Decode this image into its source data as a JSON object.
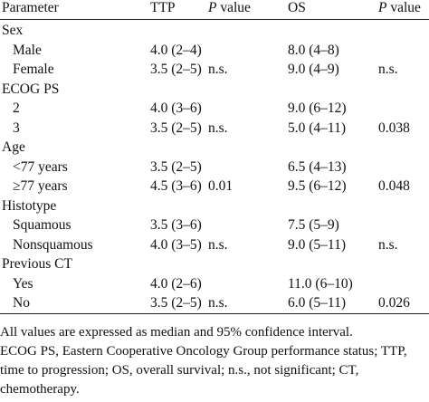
{
  "header": {
    "parameter": "Parameter",
    "ttp": "TTP",
    "p_value_ttp_italic": "P",
    "p_value_ttp_rest": " value",
    "os": "OS",
    "p_value_os_italic": "P",
    "p_value_os_rest": " value"
  },
  "rows": [
    {
      "label": "Sex",
      "group": true,
      "ttp": "",
      "p_ttp": "",
      "os": "",
      "p_os": ""
    },
    {
      "label": "Male",
      "group": false,
      "ttp": "4.0 (2–4)",
      "p_ttp": "",
      "os": "8.0 (4–8)",
      "p_os": ""
    },
    {
      "label": "Female",
      "group": false,
      "ttp": "3.5 (2–5)",
      "p_ttp": "n.s.",
      "os": "9.0 (4–9)",
      "p_os": "n.s."
    },
    {
      "label": "ECOG PS",
      "group": true,
      "ttp": "",
      "p_ttp": "",
      "os": "",
      "p_os": ""
    },
    {
      "label": "2",
      "group": false,
      "ttp": "4.0 (3–6)",
      "p_ttp": "",
      "os": "9.0 (6–12)",
      "p_os": ""
    },
    {
      "label": "3",
      "group": false,
      "ttp": "3.5 (2–5)",
      "p_ttp": "n.s.",
      "os": "5.0 (4–11)",
      "p_os": "0.038"
    },
    {
      "label": "Age",
      "group": true,
      "ttp": "",
      "p_ttp": "",
      "os": "",
      "p_os": ""
    },
    {
      "label": "<77 years",
      "group": false,
      "ttp": "3.5 (2–5)",
      "p_ttp": "",
      "os": "6.5 (4–13)",
      "p_os": ""
    },
    {
      "label": "≥77 years",
      "group": false,
      "ttp": "4.5 (3–6)",
      "p_ttp": "0.01",
      "os": "9.5 (6–12)",
      "p_os": "0.048"
    },
    {
      "label": "Histotype",
      "group": true,
      "ttp": "",
      "p_ttp": "",
      "os": "",
      "p_os": ""
    },
    {
      "label": "Squamous",
      "group": false,
      "ttp": "3.5 (3–6)",
      "p_ttp": "",
      "os": "7.5 (5–9)",
      "p_os": ""
    },
    {
      "label": "Nonsquamous",
      "group": false,
      "ttp": "4.0 (3–5)",
      "p_ttp": "n.s.",
      "os": "9.0 (5–11)",
      "p_os": "n.s."
    },
    {
      "label": "Previous CT",
      "group": true,
      "ttp": "",
      "p_ttp": "",
      "os": "",
      "p_os": ""
    },
    {
      "label": "Yes",
      "group": false,
      "ttp": "4.0 (2–6)",
      "p_ttp": "",
      "os": "11.0 (6–10)",
      "p_os": ""
    },
    {
      "label": "No",
      "group": false,
      "ttp": "3.5 (2–5)",
      "p_ttp": "n.s.",
      "os": "6.0 (5–11)",
      "p_os": "0.026"
    }
  ],
  "footnotes": {
    "line1": "All values are expressed as median and 95% confidence interval.",
    "line2": "ECOG PS, Eastern Cooperative Oncology Group performance status; TTP,",
    "line3": "time to progression; OS, overall survival; n.s., not significant; CT,",
    "line4": "chemotherapy."
  }
}
